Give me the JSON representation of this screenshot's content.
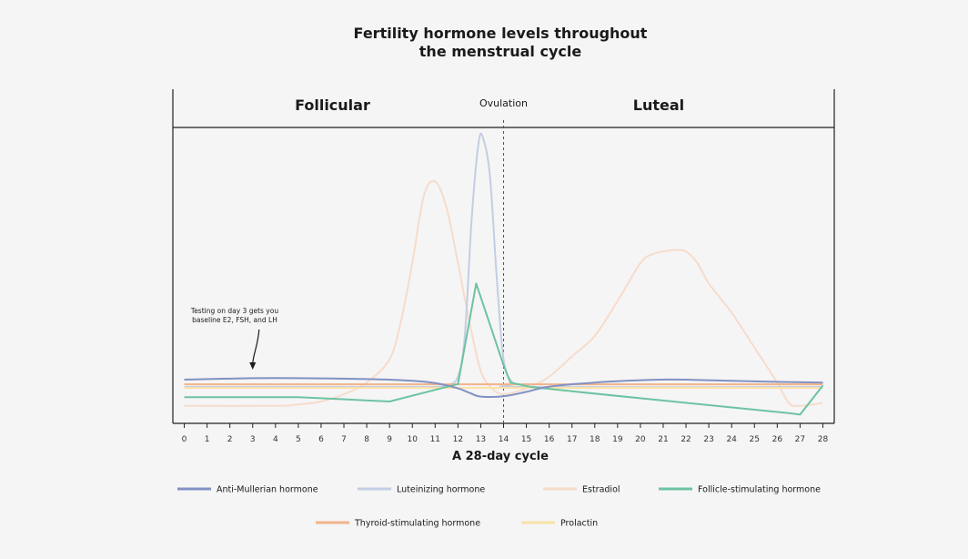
{
  "chart_data": {
    "type": "line",
    "title": [
      "Fertility hormone levels throughout",
      "the menstrual cycle"
    ],
    "xlabel": "A 28-day cycle",
    "ylabel": "",
    "x_ticks": [
      0,
      1,
      2,
      3,
      4,
      5,
      6,
      7,
      8,
      9,
      10,
      11,
      12,
      13,
      14,
      15,
      16,
      17,
      18,
      19,
      20,
      21,
      22,
      23,
      24,
      25,
      26,
      27,
      28
    ],
    "xlim": [
      -0.5,
      28.5
    ],
    "ylim": [
      0,
      100
    ],
    "phases": [
      {
        "label": "Follicular",
        "center": 6.5
      },
      {
        "label": "Ovulation",
        "center": 14
      },
      {
        "label": "Luteal",
        "center": 20.8
      }
    ],
    "ovulation_day": 14,
    "annotation": {
      "lines": [
        "Testing on day 3 gets you",
        "baseline E2, FSH, and LH"
      ],
      "target_day": 3
    },
    "series": [
      {
        "name": "Estradiol",
        "color": "#f6dccb",
        "x": [
          0,
          4,
          5,
          6,
          7,
          8,
          9,
          9.5,
          10,
          10.5,
          11,
          11.5,
          12,
          12.5,
          13,
          13.5,
          14,
          15,
          16,
          17,
          18,
          19,
          20,
          20.5,
          21,
          21.5,
          22,
          22.5,
          23,
          24,
          25,
          26,
          26.5,
          27,
          28
        ],
        "y": [
          6,
          6,
          6.5,
          7.5,
          10,
          14,
          22,
          35,
          55,
          78,
          83,
          74,
          55,
          35,
          18,
          12,
          10,
          12,
          16,
          23,
          30,
          42,
          55,
          58,
          59,
          59.5,
          59,
          55,
          48,
          38,
          26,
          14,
          7,
          6,
          7
        ]
      },
      {
        "name": "Luteinizing hormone",
        "color": "#c4cde3",
        "x": [
          0,
          10,
          11,
          11.5,
          12,
          12.3,
          12.6,
          12.9,
          13.1,
          13.4,
          13.7,
          14,
          14.4,
          15,
          28
        ],
        "y": [
          12.5,
          12.5,
          12.5,
          13,
          16,
          30,
          70,
          96,
          98,
          85,
          50,
          22,
          14,
          12.5,
          12.5
        ]
      },
      {
        "name": "Prolactin",
        "color": "#f9e2a8",
        "x": [
          0,
          28
        ],
        "y": [
          12.2,
          12.2
        ]
      },
      {
        "name": "Thyroid-stimulating hormone",
        "color": "#f1b38a",
        "x": [
          0,
          28
        ],
        "y": [
          13.4,
          13.4
        ]
      },
      {
        "name": "Follicle-stimulating hormone",
        "color": "#6dc3a2",
        "x": [
          0,
          5,
          9,
          12,
          12.8,
          14,
          14.3,
          15.2,
          17,
          26.5,
          27,
          28
        ],
        "y": [
          9,
          9,
          7.5,
          13.5,
          48,
          20,
          14,
          12.5,
          11,
          3.5,
          3,
          13
        ]
      },
      {
        "name": "Anti-Mullerian hormone",
        "color": "#8291c4",
        "x": [
          0,
          3,
          5,
          8,
          10,
          11,
          12,
          12.5,
          13,
          14,
          15,
          16,
          18,
          20,
          21,
          22,
          25,
          28
        ],
        "y": [
          15,
          15.5,
          15.5,
          15.2,
          14.6,
          13.8,
          12,
          10.5,
          9.2,
          9.3,
          10.8,
          12.6,
          14,
          14.8,
          15,
          15,
          14.4,
          14
        ]
      }
    ]
  },
  "legend": [
    {
      "label": "Anti-Mullerian hormone",
      "color": "#8291c4"
    },
    {
      "label": "Luteinizing hormone",
      "color": "#c4cde3"
    },
    {
      "label": "Estradiol",
      "color": "#f6dccb"
    },
    {
      "label": "Follicle-stimulating hormone",
      "color": "#6dc3a2"
    },
    {
      "label": "Thyroid-stimulating hormone",
      "color": "#f1b38a"
    },
    {
      "label": "Prolactin",
      "color": "#f9e2a8"
    }
  ]
}
